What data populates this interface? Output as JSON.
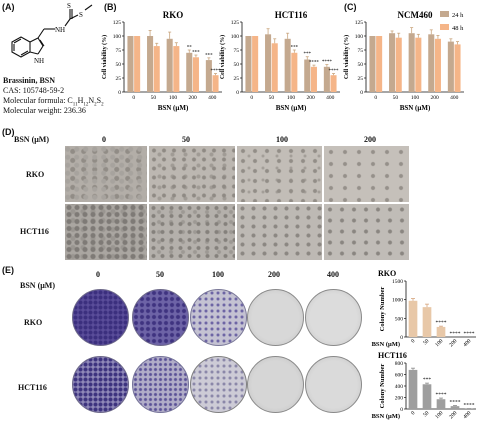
{
  "panels": {
    "A": "(A)",
    "B": "(B)",
    "C": "(C)",
    "D": "(D)",
    "E": "(E)"
  },
  "compound": {
    "name": "Brassinin, BSN",
    "cas": "CAS: 105748-59-2",
    "formula_prefix": "Molecular formula: C",
    "f_c": "11",
    "f_h_sym": "H",
    "f_h": "12",
    "f_n_sym": "N",
    "f_n": "2",
    "f_s_sym": "S",
    "f_s": "2",
    "weight": "Molecular weight: 236.36",
    "atoms": {
      "S1": "S",
      "S2": "S",
      "NH1": "NH",
      "NH2": "NH"
    }
  },
  "legend": {
    "h24": "24 h",
    "h48": "48 h",
    "color24": "#c4a98f",
    "color48": "#f5b588"
  },
  "viability": {
    "ylabel": "Cell viability (%)",
    "xlabel": "BSN (μM)",
    "categories": [
      "0",
      "50",
      "100",
      "200",
      "400"
    ],
    "yticks": [
      "0",
      "25",
      "50",
      "75",
      "100",
      "125"
    ]
  },
  "colony": {
    "ylabel": "Colony Number",
    "xlabel": "BSN (μM)",
    "categories": [
      "0",
      "50",
      "100",
      "200",
      "400"
    ],
    "rko_yticks": [
      "0",
      "500",
      "1000",
      "1500"
    ],
    "hct_yticks": [
      "0",
      "200",
      "400",
      "600",
      "800"
    ]
  },
  "chart_data": [
    {
      "type": "bar",
      "title": "RKO",
      "categories": [
        "0",
        "50",
        "100",
        "200",
        "400"
      ],
      "xlabel": "BSN (μM)",
      "ylabel": "Cell viability (%)",
      "ylim": [
        0,
        125
      ],
      "series": [
        {
          "name": "24 h",
          "values": [
            100,
            100,
            95,
            70,
            57
          ],
          "errors": [
            0,
            10,
            12,
            5,
            4
          ]
        },
        {
          "name": "48 h",
          "values": [
            100,
            82,
            82,
            62,
            30
          ],
          "errors": [
            0,
            5,
            6,
            4,
            3
          ]
        }
      ],
      "annotations": [
        "",
        "",
        "",
        "**",
        "***",
        "***",
        "****"
      ]
    },
    {
      "type": "bar",
      "title": "HCT116",
      "categories": [
        "0",
        "50",
        "100",
        "200",
        "400"
      ],
      "xlabel": "BSN (μM)",
      "ylabel": "Cell viability (%)",
      "ylim": [
        0,
        125
      ],
      "series": [
        {
          "name": "24 h",
          "values": [
            100,
            103,
            95,
            58,
            45
          ],
          "errors": [
            0,
            10,
            10,
            5,
            4
          ]
        },
        {
          "name": "48 h",
          "values": [
            100,
            87,
            70,
            45,
            30
          ],
          "errors": [
            0,
            8,
            5,
            3,
            3
          ]
        }
      ],
      "annotations": [
        "***",
        "***",
        "****",
        "****",
        "****"
      ]
    },
    {
      "type": "bar",
      "title": "NCM460",
      "categories": [
        "0",
        "50",
        "100",
        "200",
        "400"
      ],
      "xlabel": "BSN (μM)",
      "ylabel": "Cell viability (%)",
      "ylim": [
        0,
        125
      ],
      "legend": "top-right",
      "series": [
        {
          "name": "24 h",
          "values": [
            100,
            105,
            105,
            103,
            90
          ],
          "errors": [
            0,
            4,
            10,
            8,
            5
          ]
        },
        {
          "name": "48 h",
          "values": [
            100,
            97,
            97,
            95,
            85
          ],
          "errors": [
            0,
            8,
            6,
            6,
            5
          ]
        }
      ]
    },
    {
      "type": "bar",
      "title": "RKO",
      "categories": [
        "0",
        "50",
        "100",
        "200",
        "400"
      ],
      "xlabel": "BSN (μM)",
      "ylabel": "Colony Number",
      "ylim": [
        0,
        1500
      ],
      "values": [
        970,
        800,
        270,
        0,
        0
      ],
      "errors": [
        60,
        80,
        20,
        0,
        0
      ],
      "annotations": [
        "",
        "",
        "****",
        "****",
        "****"
      ]
    },
    {
      "type": "bar",
      "title": "HCT116",
      "categories": [
        "0",
        "50",
        "100",
        "200",
        "400"
      ],
      "xlabel": "BSN (μM)",
      "ylabel": "Colony Number",
      "ylim": [
        0,
        800
      ],
      "values": [
        680,
        430,
        170,
        50,
        5
      ],
      "errors": [
        30,
        20,
        20,
        10,
        2
      ],
      "annotations": [
        "",
        "***",
        "****",
        "****",
        "****"
      ]
    }
  ],
  "micro": {
    "axis_label": "BSN (μM)",
    "doses": [
      "0",
      "50",
      "100",
      "200"
    ],
    "rows": [
      "RKO",
      "HCT116"
    ]
  },
  "colonyimg": {
    "axis_label": "BSN (μM)",
    "doses": [
      "0",
      "50",
      "100",
      "200",
      "400"
    ],
    "rows": [
      "RKO",
      "HCT116"
    ]
  }
}
